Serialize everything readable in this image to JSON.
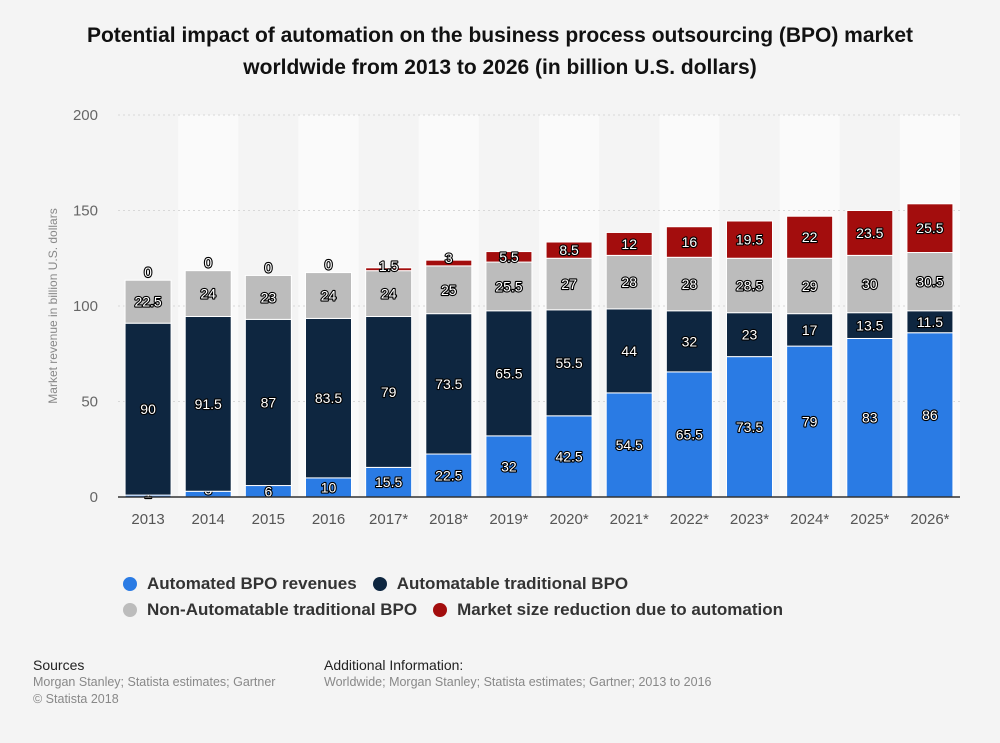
{
  "title": "Potential impact of automation on the business process outsourcing (BPO) market worldwide from 2013 to 2026 (in billion U.S. dollars)",
  "chart_data": {
    "type": "bar",
    "stacked": true,
    "categories": [
      "2013",
      "2014",
      "2015",
      "2016",
      "2017*",
      "2018*",
      "2019*",
      "2020*",
      "2021*",
      "2022*",
      "2023*",
      "2024*",
      "2025*",
      "2026*"
    ],
    "series": [
      {
        "name": "Automated BPO revenues",
        "color": "#2a7be4",
        "values": [
          1,
          3,
          6,
          10,
          15.5,
          22.5,
          32,
          42.5,
          54.5,
          65.5,
          73.5,
          79,
          83,
          86
        ]
      },
      {
        "name": "Automatable traditional BPO",
        "color": "#0e2640",
        "values": [
          90,
          91.5,
          87,
          83.5,
          79,
          73.5,
          65.5,
          55.5,
          44,
          32,
          23,
          17,
          13.5,
          11.5
        ]
      },
      {
        "name": "Non-Automatable traditional BPO",
        "color": "#bcbcbc",
        "values": [
          22.5,
          24,
          23,
          24,
          24,
          25,
          25.5,
          27,
          28,
          28,
          28.5,
          29,
          30,
          30.5
        ]
      },
      {
        "name": "Market size reduction due to automation",
        "color": "#a30d0d",
        "values": [
          0,
          0,
          0,
          0,
          1.5,
          3,
          5.5,
          8.5,
          12,
          16,
          19.5,
          22,
          23.5,
          25.5
        ]
      }
    ],
    "xlabel": "",
    "ylabel": "Market revenue in billion U.S. dollars",
    "ylim": [
      0,
      200
    ],
    "yticks": [
      0,
      50,
      100,
      150,
      200
    ],
    "grid": true,
    "legend_position": "bottom"
  },
  "footer": {
    "sources_heading": "Sources",
    "sources_text": "Morgan Stanley; Statista estimates; Gartner",
    "copyright": "© Statista 2018",
    "additional_heading": "Additional Information:",
    "additional_text": "Worldwide; Morgan Stanley; Statista estimates; Gartner; 2013 to 2016"
  }
}
